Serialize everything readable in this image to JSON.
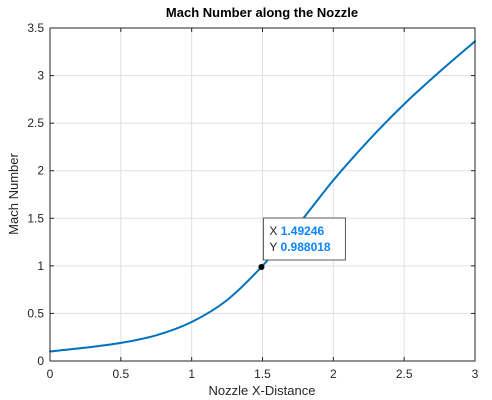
{
  "chart_data": {
    "type": "line",
    "title": "Mach Number along the Nozzle",
    "xlabel": "Nozzle X-Distance",
    "ylabel": "Mach Number",
    "xlim": [
      0,
      3
    ],
    "ylim": [
      0,
      3.5
    ],
    "grid": true,
    "xticks": [
      0,
      0.5,
      1,
      1.5,
      2,
      2.5,
      3
    ],
    "xtick_labels": [
      "0",
      "0.5",
      "1",
      "1.5",
      "2",
      "2.5",
      "3"
    ],
    "yticks": [
      0,
      0.5,
      1,
      1.5,
      2,
      2.5,
      3,
      3.5
    ],
    "ytick_labels": [
      "0",
      "0.5",
      "1",
      "1.5",
      "2",
      "2.5",
      "3",
      "3.5"
    ],
    "series": [
      {
        "color": "#0072bd",
        "x": [
          0,
          0.25,
          0.5,
          0.75,
          1.0,
          1.25,
          1.49246,
          1.75,
          2.0,
          2.25,
          2.5,
          2.75,
          3.0
        ],
        "y": [
          0.1,
          0.14,
          0.19,
          0.27,
          0.41,
          0.64,
          0.988018,
          1.43,
          1.9,
          2.32,
          2.7,
          3.04,
          3.36
        ]
      }
    ],
    "datatip": {
      "x": 1.49246,
      "y": 0.988018,
      "x_prefix": "X",
      "x_value": "1.49246",
      "y_prefix": "Y",
      "y_value": "0.988018",
      "value_color": "#0a84ff"
    }
  }
}
